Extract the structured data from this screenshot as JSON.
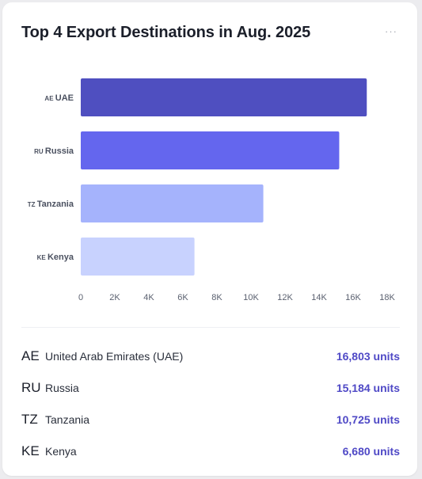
{
  "card": {
    "title": "Top 4 Export Destinations in Aug. 2025",
    "menu_label": "···"
  },
  "chart_data": {
    "type": "bar",
    "orientation": "horizontal",
    "categories": [
      "AE UAE",
      "RU Russia",
      "TZ Tanzania",
      "KE Kenya"
    ],
    "values": [
      16803,
      15184,
      10725,
      6680
    ],
    "xlim": [
      0,
      18000
    ],
    "xticks": [
      "0",
      "2K",
      "4K",
      "6K",
      "8K",
      "10K",
      "12K",
      "14K",
      "16K",
      "18K"
    ],
    "grid": false,
    "colors": [
      "#4f4fc0",
      "#6466ee",
      "#a5b3fc",
      "#c8d2fe"
    ]
  },
  "breakdown": [
    {
      "code": "AE",
      "country": "United Arab Emirates (UAE)",
      "value": "16,803 units"
    },
    {
      "code": "RU",
      "country": "Russia",
      "value": "15,184 units"
    },
    {
      "code": "TZ",
      "country": "Tanzania",
      "value": "10,725 units"
    },
    {
      "code": "KE",
      "country": "Kenya",
      "value": "6,680 units"
    }
  ]
}
